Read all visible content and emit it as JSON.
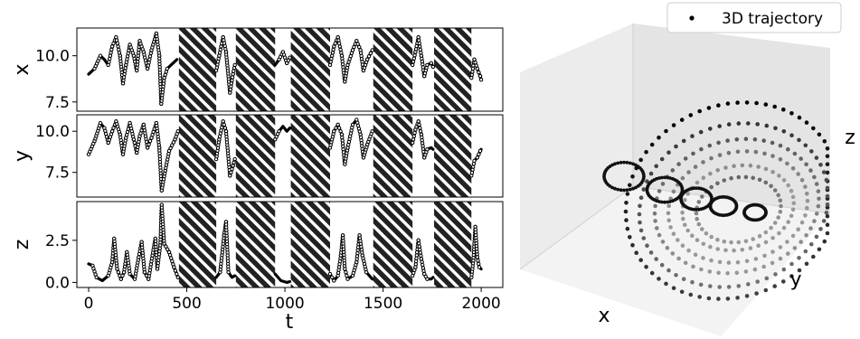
{
  "chart_data": [
    {
      "type": "line",
      "panels": [
        {
          "ylabel": "x",
          "yticks": [
            "7.5",
            "10.0"
          ],
          "ylim": [
            7.0,
            11.5
          ]
        },
        {
          "ylabel": "y",
          "yticks": [
            "7.5",
            "10.0"
          ],
          "ylim": [
            6.0,
            11.0
          ]
        },
        {
          "ylabel": "z",
          "yticks": [
            "0.0",
            "2.5"
          ],
          "ylim": [
            -0.3,
            4.8
          ]
        }
      ],
      "xlabel": "t",
      "xticks": [
        "0",
        "500",
        "1000",
        "1500",
        "2000"
      ],
      "xlim": [
        -60,
        2110
      ],
      "masked_intervals": [
        [
          460,
          650
        ],
        [
          750,
          950
        ],
        [
          1030,
          1230
        ],
        [
          1450,
          1650
        ],
        [
          1760,
          1950
        ]
      ],
      "series": [
        {
          "points": [
            [
              0,
              9.0
            ],
            [
              30,
              9.3
            ],
            [
              60,
              10.0
            ],
            [
              80,
              9.8
            ],
            [
              100,
              9.5
            ],
            [
              120,
              10.5
            ],
            [
              140,
              11.0
            ],
            [
              160,
              10.0
            ],
            [
              175,
              8.5
            ],
            [
              190,
              9.5
            ],
            [
              210,
              10.6
            ],
            [
              230,
              10.0
            ],
            [
              245,
              9.2
            ],
            [
              260,
              10.8
            ],
            [
              280,
              10.2
            ],
            [
              300,
              9.3
            ],
            [
              320,
              10.3
            ],
            [
              345,
              11.2
            ],
            [
              360,
              10.0
            ],
            [
              370,
              7.4
            ],
            [
              385,
              8.8
            ],
            [
              400,
              9.3
            ],
            [
              430,
              9.6
            ],
            [
              450,
              9.8
            ]
          ]
        },
        {
          "points": [
            [
              650,
              9.2
            ],
            [
              665,
              10.0
            ],
            [
              685,
              11.0
            ],
            [
              700,
              10.2
            ],
            [
              720,
              8.0
            ],
            [
              735,
              9.0
            ],
            [
              745,
              9.5
            ]
          ]
        },
        {
          "points": [
            [
              950,
              9.5
            ],
            [
              970,
              9.8
            ],
            [
              990,
              10.2
            ],
            [
              1010,
              9.6
            ],
            [
              1025,
              9.9
            ]
          ]
        },
        {
          "points": [
            [
              1230,
              9.5
            ],
            [
              1250,
              10.5
            ],
            [
              1270,
              11.0
            ],
            [
              1290,
              10.0
            ],
            [
              1305,
              8.6
            ],
            [
              1320,
              9.5
            ],
            [
              1345,
              10.3
            ],
            [
              1365,
              10.8
            ],
            [
              1385,
              10.3
            ],
            [
              1400,
              9.2
            ],
            [
              1420,
              9.8
            ],
            [
              1445,
              10.3
            ]
          ]
        },
        {
          "points": [
            [
              1650,
              9.5
            ],
            [
              1665,
              10.2
            ],
            [
              1680,
              11.0
            ],
            [
              1695,
              10.0
            ],
            [
              1710,
              8.9
            ],
            [
              1725,
              9.5
            ],
            [
              1745,
              9.6
            ],
            [
              1755,
              9.4
            ]
          ]
        },
        {
          "points": [
            [
              1950,
              8.8
            ],
            [
              1965,
              9.8
            ],
            [
              1980,
              9.3
            ],
            [
              1995,
              8.9
            ],
            [
              2000,
              8.7
            ]
          ]
        }
      ],
      "series_y": [
        {
          "points": [
            [
              0,
              8.6
            ],
            [
              30,
              9.4
            ],
            [
              60,
              10.5
            ],
            [
              80,
              10.2
            ],
            [
              100,
              9.3
            ],
            [
              120,
              10.0
            ],
            [
              140,
              10.6
            ],
            [
              160,
              9.8
            ],
            [
              175,
              8.6
            ],
            [
              190,
              9.6
            ],
            [
              210,
              10.5
            ],
            [
              230,
              9.5
            ],
            [
              245,
              8.7
            ],
            [
              260,
              9.7
            ],
            [
              280,
              10.4
            ],
            [
              300,
              9.0
            ],
            [
              320,
              9.6
            ],
            [
              345,
              10.5
            ],
            [
              360,
              9.0
            ],
            [
              372,
              6.4
            ],
            [
              390,
              7.6
            ],
            [
              410,
              8.8
            ],
            [
              440,
              9.5
            ],
            [
              455,
              10.0
            ]
          ]
        },
        {
          "points": [
            [
              650,
              8.3
            ],
            [
              665,
              9.5
            ],
            [
              685,
              10.6
            ],
            [
              700,
              10.0
            ],
            [
              720,
              7.3
            ],
            [
              735,
              7.9
            ],
            [
              745,
              8.3
            ]
          ]
        },
        {
          "points": [
            [
              950,
              9.5
            ],
            [
              970,
              10.0
            ],
            [
              990,
              10.3
            ],
            [
              1010,
              10.0
            ],
            [
              1025,
              10.2
            ]
          ]
        },
        {
          "points": [
            [
              1230,
              9.0
            ],
            [
              1250,
              10.0
            ],
            [
              1270,
              10.4
            ],
            [
              1290,
              9.8
            ],
            [
              1305,
              8.0
            ],
            [
              1320,
              9.0
            ],
            [
              1345,
              10.4
            ],
            [
              1365,
              10.7
            ],
            [
              1385,
              9.8
            ],
            [
              1400,
              8.4
            ],
            [
              1420,
              9.2
            ],
            [
              1445,
              10.0
            ]
          ]
        },
        {
          "points": [
            [
              1650,
              9.3
            ],
            [
              1665,
              10.1
            ],
            [
              1680,
              10.6
            ],
            [
              1695,
              9.8
            ],
            [
              1710,
              8.4
            ],
            [
              1725,
              8.9
            ],
            [
              1745,
              9.0
            ],
            [
              1755,
              8.9
            ]
          ]
        },
        {
          "points": [
            [
              1950,
              7.3
            ],
            [
              1965,
              8.2
            ],
            [
              1980,
              8.4
            ],
            [
              1995,
              8.8
            ],
            [
              2000,
              8.9
            ]
          ]
        }
      ],
      "series_z": [
        {
          "points": [
            [
              0,
              1.1
            ],
            [
              20,
              1.0
            ],
            [
              40,
              0.3
            ],
            [
              70,
              0.1
            ],
            [
              100,
              0.4
            ],
            [
              120,
              1.2
            ],
            [
              130,
              2.6
            ],
            [
              145,
              0.8
            ],
            [
              165,
              0.2
            ],
            [
              180,
              0.6
            ],
            [
              195,
              1.8
            ],
            [
              210,
              0.5
            ],
            [
              235,
              0.2
            ],
            [
              255,
              1.5
            ],
            [
              270,
              2.4
            ],
            [
              285,
              0.6
            ],
            [
              305,
              0.2
            ],
            [
              325,
              1.6
            ],
            [
              340,
              2.6
            ],
            [
              350,
              0.8
            ],
            [
              365,
              2.2
            ],
            [
              372,
              4.6
            ],
            [
              385,
              2.3
            ],
            [
              410,
              1.8
            ],
            [
              435,
              0.9
            ],
            [
              455,
              0.3
            ]
          ]
        },
        {
          "points": [
            [
              650,
              0.3
            ],
            [
              670,
              0.6
            ],
            [
              690,
              2.8
            ],
            [
              700,
              3.6
            ],
            [
              712,
              0.6
            ],
            [
              730,
              0.3
            ],
            [
              745,
              0.4
            ]
          ]
        },
        {
          "points": [
            [
              950,
              0.5
            ],
            [
              980,
              0.1
            ],
            [
              1010,
              0.0
            ],
            [
              1025,
              0.05
            ]
          ]
        },
        {
          "points": [
            [
              1230,
              0.5
            ],
            [
              1250,
              0.1
            ],
            [
              1270,
              0.4
            ],
            [
              1285,
              1.6
            ],
            [
              1295,
              2.8
            ],
            [
              1305,
              0.8
            ],
            [
              1320,
              0.2
            ],
            [
              1345,
              0.4
            ],
            [
              1365,
              1.2
            ],
            [
              1380,
              2.8
            ],
            [
              1395,
              1.6
            ],
            [
              1415,
              0.6
            ],
            [
              1445,
              0.2
            ]
          ]
        },
        {
          "points": [
            [
              1650,
              0.4
            ],
            [
              1665,
              0.9
            ],
            [
              1680,
              2.5
            ],
            [
              1695,
              1.4
            ],
            [
              1710,
              0.5
            ],
            [
              1725,
              0.2
            ],
            [
              1745,
              0.2
            ],
            [
              1755,
              0.3
            ]
          ]
        },
        {
          "points": [
            [
              1950,
              0.3
            ],
            [
              1960,
              1.3
            ],
            [
              1970,
              3.3
            ],
            [
              1980,
              1.5
            ],
            [
              1990,
              0.9
            ],
            [
              2000,
              0.8
            ]
          ]
        }
      ]
    },
    {
      "type": "scatter",
      "legend": {
        "label": "3D trajectory",
        "placement": "top-right"
      },
      "xlabel": "x",
      "ylabel": "y",
      "zlabel": "z",
      "colors": {
        "points": "#000000",
        "pane_back": "#e6e6e6",
        "pane_side": "#f1f1f1",
        "pane_floor": "#f6f6f6"
      }
    }
  ]
}
